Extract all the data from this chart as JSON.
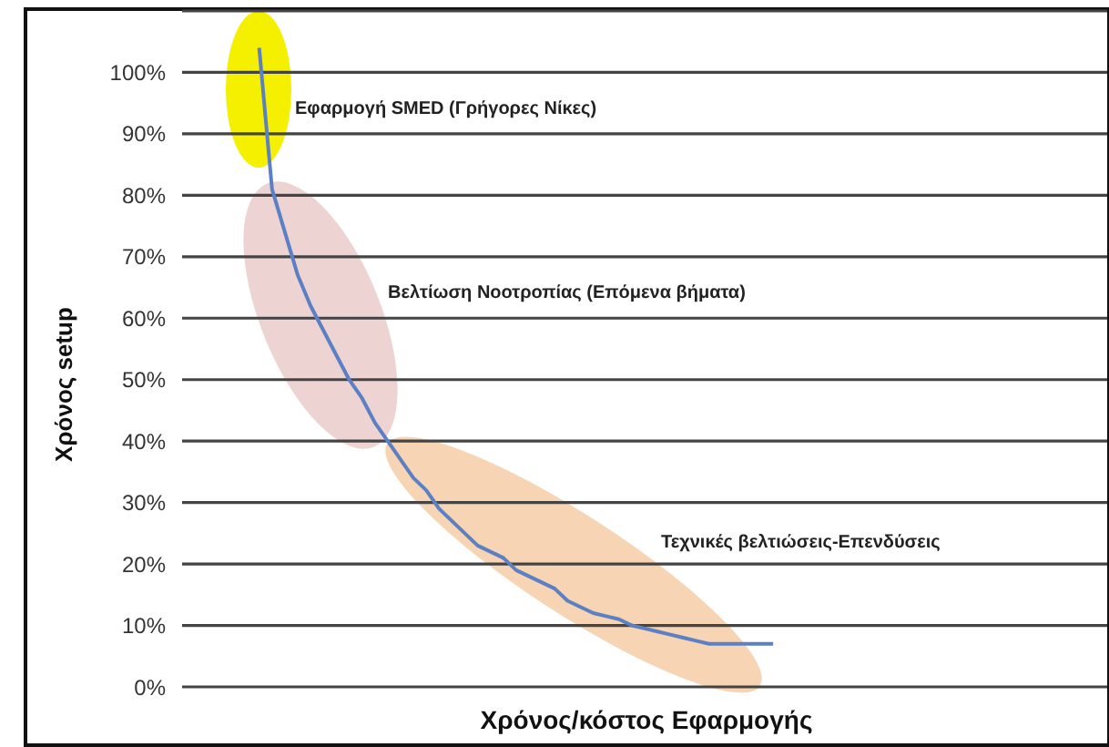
{
  "chart_data": {
    "type": "line",
    "xlabel": "Χρόνος/κόστος Εφαρμογής",
    "ylabel": "Χρόνος setup",
    "categories": [
      null,
      null,
      null,
      null,
      null,
      null,
      null,
      null,
      null,
      null,
      null,
      null,
      null,
      null,
      null,
      null,
      null,
      null,
      null,
      null,
      null,
      null,
      null,
      null,
      null,
      null,
      null,
      null,
      null,
      null,
      null,
      null,
      null,
      null,
      null,
      null,
      null,
      null,
      null,
      null,
      null,
      null,
      null,
      null,
      null,
      null,
      null,
      null,
      null,
      null,
      null,
      null,
      null,
      null,
      null,
      null,
      null,
      null,
      null,
      null,
      null,
      null,
      null,
      null,
      null,
      null,
      null,
      null,
      null,
      null,
      null,
      null,
      null
    ],
    "series": [
      {
        "color": "#5b80c4",
        "values": [
          null,
          null,
          null,
          null,
          null,
          null,
          104,
          81,
          74,
          67,
          62,
          58,
          54,
          50,
          47,
          43,
          40,
          37,
          34,
          32,
          29,
          27,
          25,
          23,
          22,
          21,
          19,
          18,
          17,
          16,
          14,
          13,
          12,
          11.5,
          11,
          10,
          9.5,
          9,
          8.5,
          8,
          7.5,
          7,
          7,
          7,
          7,
          7,
          7,
          null,
          null,
          null,
          null,
          null,
          null,
          null,
          null,
          null,
          null,
          null,
          null,
          null,
          null,
          null,
          null,
          null,
          null,
          null,
          null,
          null,
          null,
          null,
          null,
          null,
          null
        ]
      }
    ],
    "ylim": [
      0,
      110
    ],
    "yticks": [
      {
        "value": 0,
        "label": "0%"
      },
      {
        "value": 10,
        "label": "10%"
      },
      {
        "value": 20,
        "label": "20%"
      },
      {
        "value": 30,
        "label": "30%"
      },
      {
        "value": 40,
        "label": "40%"
      },
      {
        "value": 50,
        "label": "50%"
      },
      {
        "value": 60,
        "label": "60%"
      },
      {
        "value": 70,
        "label": "70%"
      },
      {
        "value": 80,
        "label": "80%"
      },
      {
        "value": 90,
        "label": "90%"
      },
      {
        "value": 100,
        "label": "100%"
      }
    ],
    "grid": "y",
    "tick_labels": "y",
    "marker": "none",
    "line_style": "solid",
    "annotations": [
      "Εφαρμογή SMED (Γρήγορες Νίκες)",
      "Βελτίωση Νοοτροπίας (Επόμενα βήματα)",
      "Τεχνικές βελτιώσεις-Επενδύσεις"
    ]
  }
}
